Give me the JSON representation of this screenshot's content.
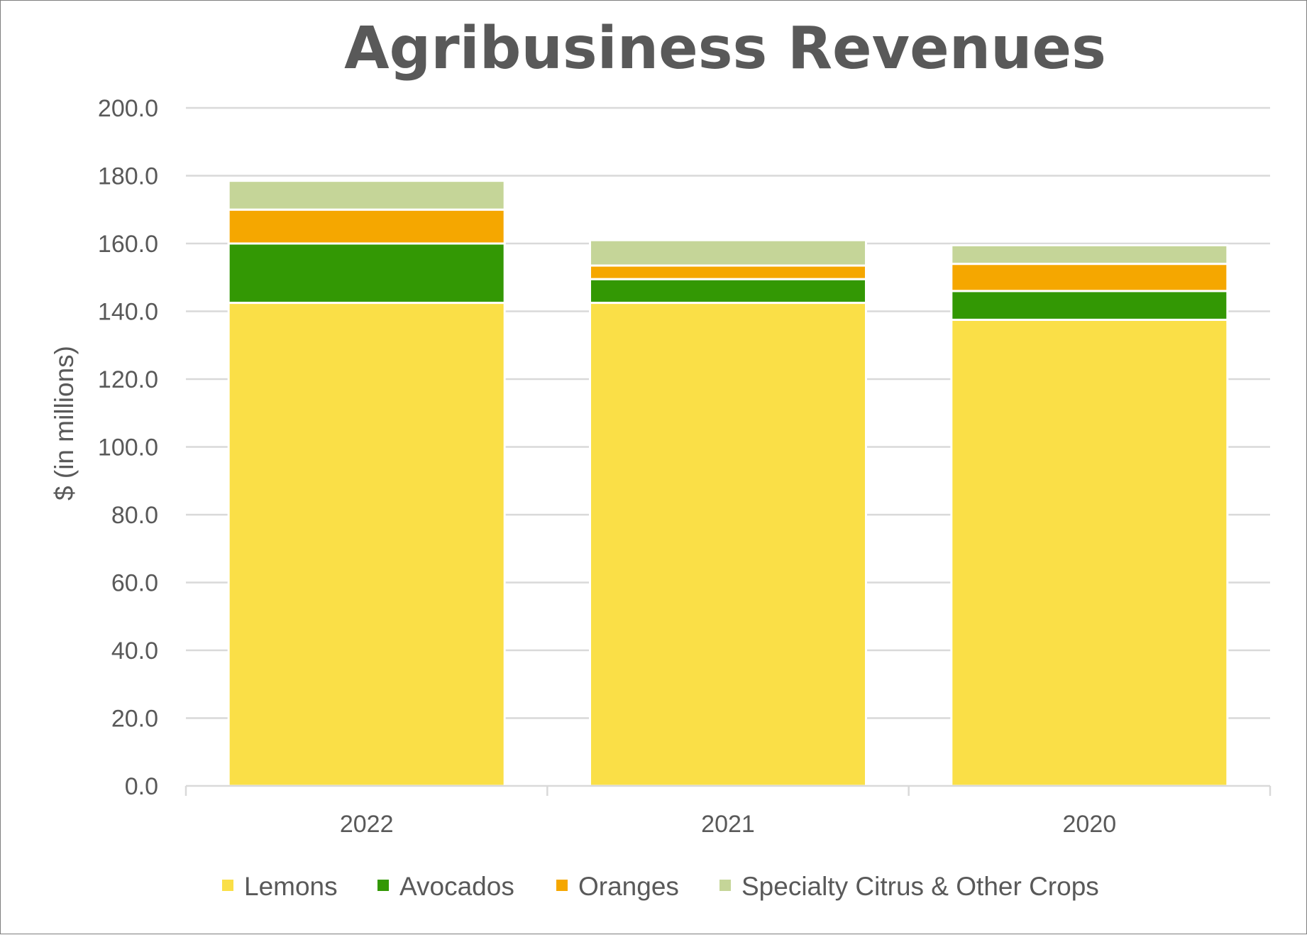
{
  "chart_data": {
    "type": "bar",
    "stacked": true,
    "title": "Agribusiness Revenues",
    "xlabel": "",
    "ylabel": "$ (in millions)",
    "ylim": [
      0,
      200
    ],
    "yticks": [
      "0.0",
      "20.0",
      "40.0",
      "60.0",
      "80.0",
      "100.0",
      "120.0",
      "140.0",
      "160.0",
      "180.0",
      "200.0"
    ],
    "categories": [
      "2022",
      "2021",
      "2020"
    ],
    "grid": true,
    "legend_position": "bottom",
    "series": [
      {
        "name": "Lemons",
        "color": "#fadf47",
        "values": [
          142.5,
          142.5,
          137.5
        ]
      },
      {
        "name": "Avocados",
        "color": "#339804",
        "values": [
          17.5,
          7.0,
          8.5
        ]
      },
      {
        "name": "Oranges",
        "color": "#f5a700",
        "values": [
          10.0,
          4.0,
          8.0
        ]
      },
      {
        "name": "Specialty Citrus & Other Crops",
        "color": "#c5d598",
        "values": [
          8.5,
          7.5,
          5.5
        ]
      }
    ]
  }
}
